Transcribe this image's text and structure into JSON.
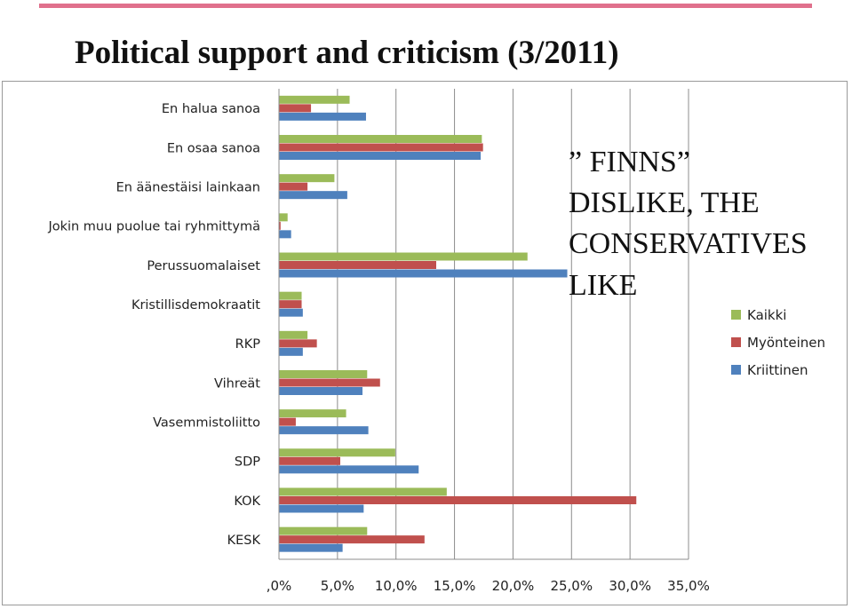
{
  "slide": {
    "title": "Political support and criticism (3/2011)",
    "annotation": "” FINNS”\nDISLIKE, THE\nCONSERVATIVES\nLIKE",
    "accent_color": "#e0708c"
  },
  "chart_data": {
    "type": "bar",
    "orientation": "horizontal",
    "categories": [
      "En halua sanoa",
      "En osaa sanoa",
      "En äänestäisi lainkaan",
      "Jokin muu puolue tai ryhmittymä",
      "Perussuomalaiset",
      "Kristillisdemokraatit",
      "RKP",
      "Vihreät",
      "Vasemmistoliitto",
      "SDP",
      "KOK",
      "KESK"
    ],
    "series": [
      {
        "name": "Kaikki",
        "color": "#9bbb59",
        "values": [
          6.0,
          17.3,
          4.7,
          0.7,
          21.2,
          1.9,
          2.4,
          7.5,
          5.7,
          9.9,
          14.3,
          7.5
        ]
      },
      {
        "name": "Myönteinen",
        "color": "#c0504d",
        "values": [
          2.7,
          17.4,
          2.4,
          0.1,
          13.4,
          1.9,
          3.2,
          8.6,
          1.4,
          5.2,
          30.5,
          12.4
        ]
      },
      {
        "name": "Kriittinen",
        "color": "#4f81bd",
        "values": [
          7.4,
          17.2,
          5.8,
          1.0,
          24.6,
          2.0,
          2.0,
          7.1,
          7.6,
          11.9,
          7.2,
          5.4
        ]
      }
    ],
    "xlim": [
      0,
      35
    ],
    "xticks": [
      ",0%",
      "5,0%",
      "10,0%",
      "15,0%",
      "20,0%",
      "25,0%",
      "30,0%",
      "35,0%"
    ],
    "grid": true,
    "legend_position": "right"
  }
}
